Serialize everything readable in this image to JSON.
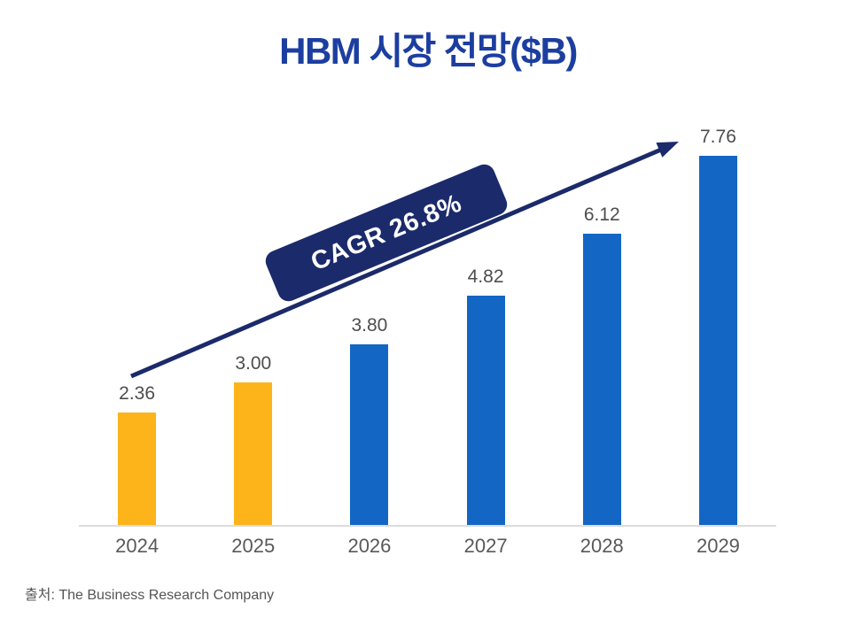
{
  "title": "HBM 시장 전망($B)",
  "cagr_badge": "CAGR 26.8%",
  "source": "출처: The Business Research Company",
  "colors": {
    "title": "#1C3EA0",
    "navy": "#1B2A6B",
    "bar_yellow": "#FCB41A",
    "bar_blue": "#1366C4",
    "axis_line": "#DCDCDC",
    "value_label": "#4D4D4D",
    "tick_label": "#595959",
    "source_text": "#555555"
  },
  "chart_data": {
    "type": "bar",
    "title": "HBM 시장 전망($B)",
    "categories": [
      "2024",
      "2025",
      "2026",
      "2027",
      "2028",
      "2029"
    ],
    "values": [
      2.36,
      3.0,
      3.8,
      4.82,
      6.12,
      7.76
    ],
    "value_labels": [
      "2.36",
      "3.00",
      "3.80",
      "4.82",
      "6.12",
      "7.76"
    ],
    "bar_colors": [
      "yellow",
      "yellow",
      "blue",
      "blue",
      "blue",
      "blue"
    ],
    "xlabel": "",
    "ylabel": "",
    "ylim": [
      0,
      8.66
    ],
    "grid": false,
    "legend": false,
    "annotation": "CAGR 26.8%",
    "annotation_style": "rotated navy banner along upward trend arrow",
    "source": "출처: The Business Research Company"
  }
}
